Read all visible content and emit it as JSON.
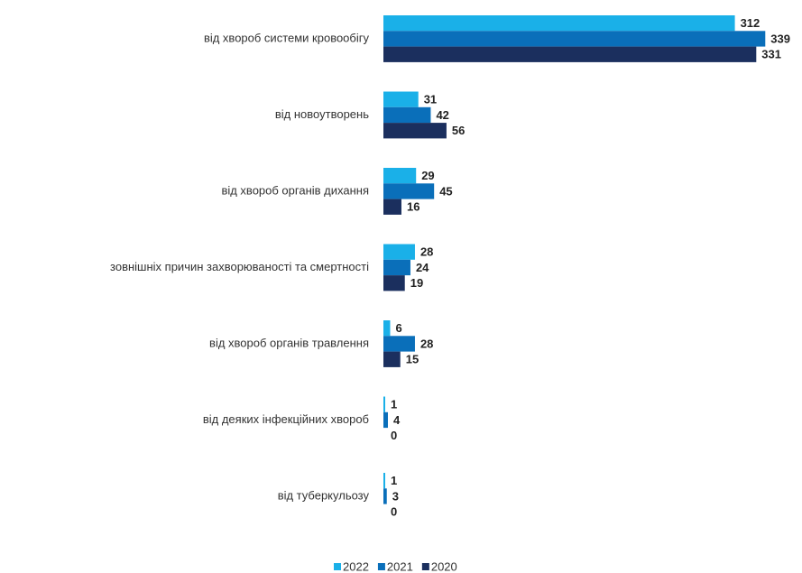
{
  "chart_data": {
    "type": "bar",
    "orientation": "horizontal",
    "categories": [
      "від хвороб системи кровообігу",
      "від новоутворень",
      "від хвороб органів дихання",
      "зовнішніх  причин захворюваності та смертності",
      "від хвороб органів травлення",
      "від деяких інфекційних  хвороб",
      "від туберкульозу"
    ],
    "series": [
      {
        "name": "2022",
        "color": "#1ab0e8",
        "values": [
          312,
          31,
          29,
          28,
          6,
          1,
          1
        ]
      },
      {
        "name": "2021",
        "color": "#0a6fba",
        "values": [
          339,
          42,
          45,
          24,
          28,
          4,
          3
        ]
      },
      {
        "name": "2020",
        "color": "#1b2f5e",
        "values": [
          331,
          56,
          16,
          19,
          15,
          0,
          0
        ]
      }
    ],
    "xlim": [
      0,
      370
    ],
    "legend": "bottom"
  }
}
